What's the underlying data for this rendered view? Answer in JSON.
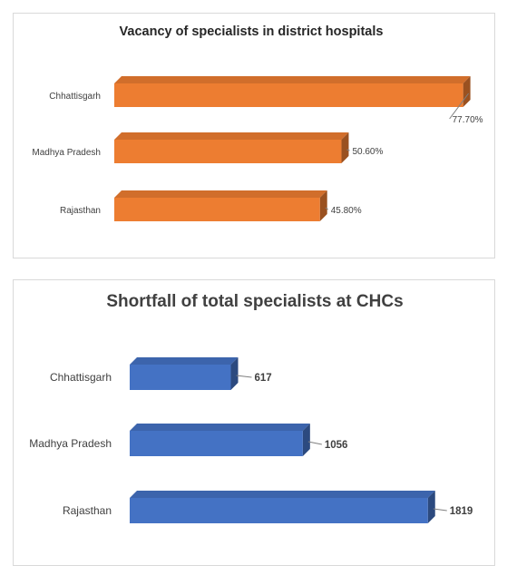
{
  "chart_data": [
    {
      "type": "bar",
      "orientation": "horizontal",
      "title": "Vacancy of specialists in district hospitals",
      "categories": [
        "Chhattisgarh",
        "Madhya Pradesh",
        "Rajasthan"
      ],
      "values": [
        77.7,
        50.6,
        45.8
      ],
      "value_labels": [
        "77.70%",
        "50.60%",
        "45.80%"
      ],
      "color": "#ED7D31",
      "xlim": [
        0,
        80
      ],
      "grid": false,
      "legend": "none"
    },
    {
      "type": "bar",
      "orientation": "horizontal",
      "title": "Shortfall of total specialists at CHCs",
      "categories": [
        "Chhattisgarh",
        "Madhya Pradesh",
        "Rajasthan"
      ],
      "values": [
        617,
        1056,
        1819
      ],
      "value_labels": [
        "617",
        "1056",
        "1819"
      ],
      "color": "#4472C4",
      "xlim": [
        0,
        1920
      ],
      "grid": false,
      "legend": "none"
    }
  ]
}
